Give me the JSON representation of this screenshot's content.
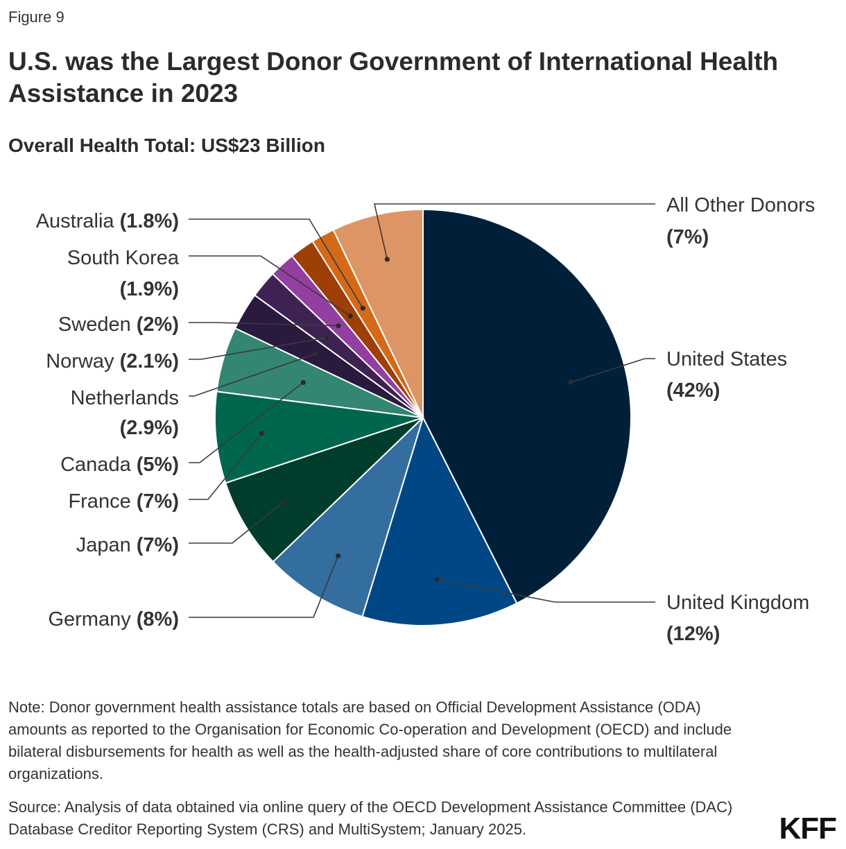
{
  "figure_label": "Figure 9",
  "title": "U.S. was the Largest Donor Government of International Health Assistance in 2023",
  "subtitle": "Overall Health Total: US$23 Billion",
  "note": "Note: Donor government health assistance totals are based on Official Development Assistance (ODA) amounts as reported to the Organisation for Economic Co-operation and Development (OECD) and include bilateral disbursements for health as well as the health-adjusted share of core contributions to multilateral organizations.",
  "source": "Source: Analysis of data obtained via online query of the OECD Development Assistance Committee (DAC) Database Creditor Reporting System (CRS) and MultiSystem; January 2025.",
  "logo": "KFF",
  "chart_data": {
    "type": "pie",
    "unit": "%",
    "slices": [
      {
        "label": "United States",
        "value": 42,
        "pct_label": "(42%)",
        "color": "#00203a"
      },
      {
        "label": "United Kingdom",
        "value": 12,
        "pct_label": "(12%)",
        "color": "#004785"
      },
      {
        "label": "Germany",
        "value": 8,
        "pct_label": "(8%)",
        "color": "#336e9e"
      },
      {
        "label": "Japan",
        "value": 7,
        "pct_label": "(7%)",
        "color": "#003d2d"
      },
      {
        "label": "France",
        "value": 7,
        "pct_label": "(7%)",
        "color": "#00664e"
      },
      {
        "label": "Canada",
        "value": 5,
        "pct_label": "(5%)",
        "color": "#338671"
      },
      {
        "label": "Netherlands",
        "value": 2.9,
        "pct_label": "(2.9%)",
        "color": "#2a1a3e"
      },
      {
        "label": "Norway",
        "value": 2.1,
        "pct_label": "(2.1%)",
        "color": "#3f2254"
      },
      {
        "label": "Sweden",
        "value": 2,
        "pct_label": "(2%)",
        "color": "#923fa1"
      },
      {
        "label": "South Korea",
        "value": 1.9,
        "pct_label": "(1.9%)",
        "color": "#9e3f05"
      },
      {
        "label": "Australia",
        "value": 1.8,
        "pct_label": "(1.8%)",
        "color": "#d46a17"
      },
      {
        "label": "All Other Donors",
        "value": 7,
        "pct_label": "(7%)",
        "color": "#de9565"
      }
    ]
  }
}
